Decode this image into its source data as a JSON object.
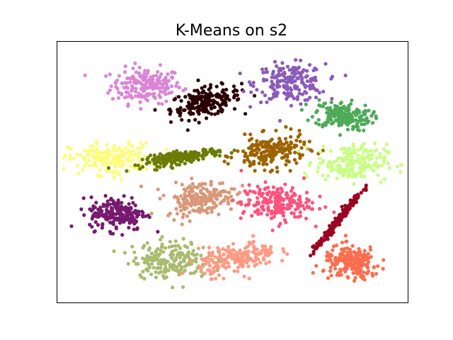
{
  "chart_data": {
    "type": "scatter",
    "title": "K-Means on s2",
    "xlabel": "",
    "ylabel": "",
    "axis_ticks": "hidden",
    "xlim": [
      0,
      100
    ],
    "ylim": [
      0,
      100
    ],
    "grid": false,
    "legend": "none",
    "points_per_cluster_approx": 200,
    "clusters": [
      {
        "id": 1,
        "color": "#da86d6",
        "center": [
          25.5,
          83
        ],
        "spread": [
          5,
          3.4
        ],
        "correlation": 0.0
      },
      {
        "id": 2,
        "color": "#2a0100",
        "center": [
          42.5,
          76.5
        ],
        "spread": [
          5,
          3.0
        ],
        "correlation": 0.4
      },
      {
        "id": 3,
        "color": "#8a5bb8",
        "center": [
          66.5,
          84
        ],
        "spread": [
          5,
          3.6
        ],
        "correlation": 0.0
      },
      {
        "id": 4,
        "color": "#4eab58",
        "center": [
          81.5,
          71.5
        ],
        "spread": [
          4,
          2.7
        ],
        "correlation": -0.2
      },
      {
        "id": 5,
        "color": "#fdfc7c",
        "center": [
          15.5,
          55
        ],
        "spread": [
          6,
          3.0
        ],
        "correlation": 0.0
      },
      {
        "id": 6,
        "color": "#6a7c03",
        "center": [
          35.5,
          55.5
        ],
        "spread": [
          5.5,
          1.6
        ],
        "correlation": 0.7
      },
      {
        "id": 7,
        "color": "#9c6300",
        "center": [
          61,
          57.5
        ],
        "spread": [
          5,
          3.2
        ],
        "correlation": 0.2
      },
      {
        "id": 8,
        "color": "#c8fe84",
        "center": [
          84,
          53.5
        ],
        "spread": [
          5,
          3.5
        ],
        "correlation": 0.0
      },
      {
        "id": 9,
        "color": "#771a6f",
        "center": [
          17.5,
          34
        ],
        "spread": [
          4,
          3.2
        ],
        "correlation": 0.0
      },
      {
        "id": 10,
        "color": "#d89879",
        "center": [
          41,
          40
        ],
        "spread": [
          5,
          3.2
        ],
        "correlation": 0.2
      },
      {
        "id": 11,
        "color": "#fd527c",
        "center": [
          62.5,
          38
        ],
        "spread": [
          5,
          3.5
        ],
        "correlation": 0.0
      },
      {
        "id": 12,
        "color": "#9b0520",
        "center": [
          80,
          31
        ],
        "spread": [
          3.4,
          5.8
        ],
        "correlation": 0.985
      },
      {
        "id": 13,
        "color": "#a9bb6e",
        "center": [
          32.5,
          16.5
        ],
        "spread": [
          5.5,
          3.5
        ],
        "correlation": 0.0
      },
      {
        "id": 14,
        "color": "#fe9a84",
        "center": [
          51.5,
          17
        ],
        "spread": [
          5.5,
          3.0
        ],
        "correlation": 0.4
      },
      {
        "id": 15,
        "color": "#fc6d4e",
        "center": [
          84,
          15
        ],
        "spread": [
          4,
          3.2
        ],
        "correlation": 0.0
      }
    ]
  }
}
